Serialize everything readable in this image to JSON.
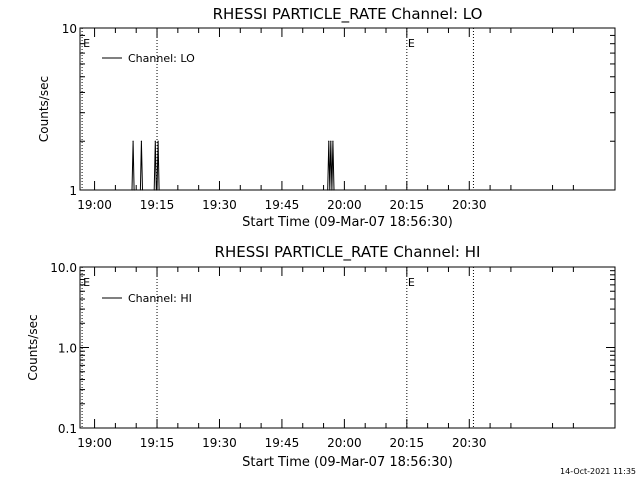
{
  "footer_timestamp": "14-Oct-2021 11:35",
  "chart_data": [
    {
      "type": "line",
      "title": "RHESSI PARTICLE_RATE Channel: LO",
      "ylabel": "Counts/sec",
      "xlabel": "Start Time (09-Mar-07 18:56:30)",
      "y_scale": "log",
      "ylim": [
        1,
        10
      ],
      "y_ticks": [
        {
          "value": 1,
          "label": "1"
        },
        {
          "value": 10,
          "label": "10"
        }
      ],
      "xlim": [
        "18:56:30",
        "21:05:00"
      ],
      "x_ticks": [
        "19:00",
        "19:15",
        "19:30",
        "19:45",
        "20:00",
        "20:15",
        "20:30"
      ],
      "grid": false,
      "legend": {
        "placement": "top-left",
        "entries": [
          "Channel: LO"
        ]
      },
      "event_markers": [
        {
          "time": "18:57:00",
          "label": "E"
        },
        {
          "time": "19:15:00",
          "label": ""
        },
        {
          "time": "20:15:00",
          "label": "E"
        },
        {
          "time": "20:31:00",
          "label": ""
        }
      ],
      "series": [
        {
          "name": "Channel: LO",
          "color": "#000000",
          "points": [
            {
              "x": "19:09:00",
              "y": 1
            },
            {
              "x": "19:09:15",
              "y": 2
            },
            {
              "x": "19:09:30",
              "y": 1
            },
            {
              "x": "19:11:00",
              "y": 1
            },
            {
              "x": "19:11:15",
              "y": 2
            },
            {
              "x": "19:11:30",
              "y": 1
            },
            {
              "x": "19:14:20",
              "y": 1
            },
            {
              "x": "19:14:35",
              "y": 2
            },
            {
              "x": "19:14:50",
              "y": 1
            },
            {
              "x": "19:15:00",
              "y": 1
            },
            {
              "x": "19:15:15",
              "y": 2
            },
            {
              "x": "19:15:30",
              "y": 1
            },
            {
              "x": "19:56:00",
              "y": 1
            },
            {
              "x": "19:56:15",
              "y": 2
            },
            {
              "x": "19:56:30",
              "y": 1
            },
            {
              "x": "19:56:45",
              "y": 2
            },
            {
              "x": "19:57:00",
              "y": 1
            },
            {
              "x": "19:57:15",
              "y": 2
            },
            {
              "x": "19:57:30",
              "y": 1
            }
          ]
        }
      ]
    },
    {
      "type": "line",
      "title": "RHESSI PARTICLE_RATE Channel: HI",
      "ylabel": "Counts/sec",
      "xlabel": "Start Time (09-Mar-07 18:56:30)",
      "y_scale": "log",
      "ylim": [
        0.1,
        10
      ],
      "y_ticks": [
        {
          "value": 0.1,
          "label": "0.1"
        },
        {
          "value": 1,
          "label": "1.0"
        },
        {
          "value": 10,
          "label": "10.0"
        }
      ],
      "xlim": [
        "18:56:30",
        "21:05:00"
      ],
      "x_ticks": [
        "19:00",
        "19:15",
        "19:30",
        "19:45",
        "20:00",
        "20:15",
        "20:30"
      ],
      "grid": false,
      "legend": {
        "placement": "top-left",
        "entries": [
          "Channel: HI"
        ]
      },
      "event_markers": [
        {
          "time": "18:57:00",
          "label": "E"
        },
        {
          "time": "19:15:00",
          "label": ""
        },
        {
          "time": "20:15:00",
          "label": "E"
        },
        {
          "time": "20:31:00",
          "label": ""
        }
      ],
      "series": [
        {
          "name": "Channel: HI",
          "color": "#000000",
          "points": []
        }
      ]
    }
  ]
}
